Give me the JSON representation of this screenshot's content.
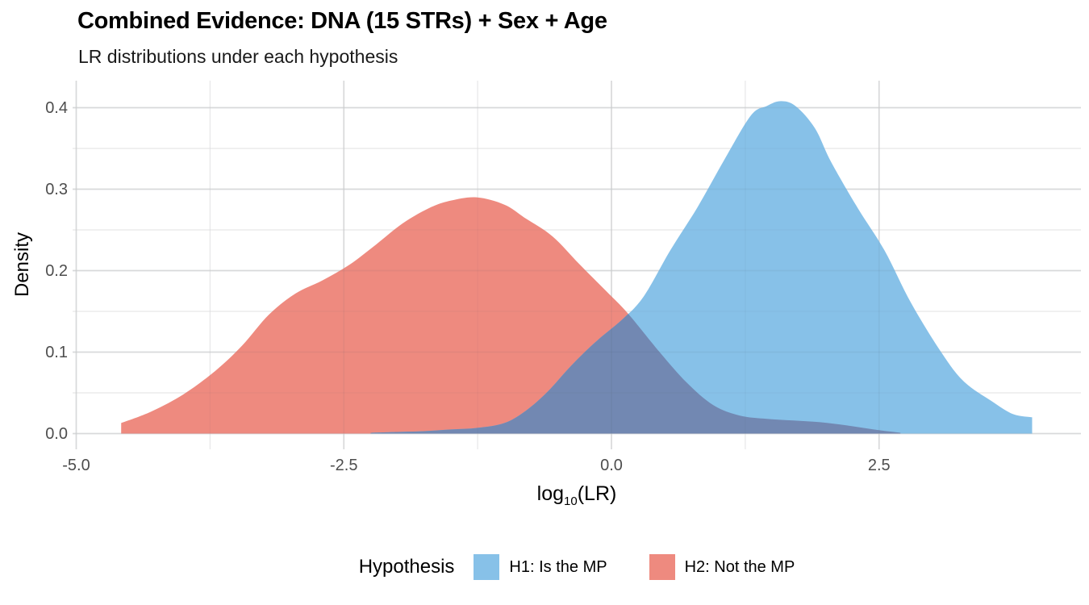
{
  "chart": {
    "title": "Combined Evidence: DNA (15 STRs) + Sex + Age",
    "subtitle": "LR distributions under each hypothesis",
    "y_axis": {
      "label": "Density",
      "tick_values": [
        0.0,
        0.1,
        0.2,
        0.3,
        0.4
      ],
      "tick_labels": [
        "0.0",
        "0.1",
        "0.2",
        "0.3",
        "0.4"
      ]
    },
    "x_axis": {
      "label_prefix": "log",
      "label_sub": "10",
      "label_suffix": "(LR)",
      "tick_values": [
        -5.0,
        -2.5,
        0.0,
        2.5
      ],
      "tick_labels": [
        "-5.0",
        "-2.5",
        "0.0",
        "2.5"
      ]
    },
    "legend": {
      "title": "Hypothesis",
      "items": [
        {
          "label": "H1: Is the MP",
          "color": "#87C1E8"
        },
        {
          "label": "H2: Not the MP",
          "color": "#EE8A7F"
        }
      ]
    }
  },
  "chart_data": {
    "type": "area",
    "title": "Combined Evidence: DNA (15 STRs) + Sex + Age",
    "subtitle": "LR distributions under each hypothesis",
    "xlabel": "log10(LR)",
    "ylabel": "Density",
    "xlim": [
      -5.03,
      4.38
    ],
    "ylim": [
      0,
      0.433
    ],
    "x_ticks": [
      -5.0,
      -2.5,
      0.0,
      2.5
    ],
    "y_ticks": [
      0.0,
      0.1,
      0.2,
      0.3,
      0.4
    ],
    "grid": true,
    "legend_position": "bottom",
    "overlap_color": "#7288B2",
    "grid_major_color": "#E4E4E4",
    "grid_minor_color": "#F0F0F0",
    "series": [
      {
        "name": "H2: Not the MP",
        "hypothesis": "H2",
        "color": "#EE8A7F",
        "points": [
          [
            -4.58,
            0.013
          ],
          [
            -4.3,
            0.027
          ],
          [
            -4.0,
            0.048
          ],
          [
            -3.7,
            0.077
          ],
          [
            -3.45,
            0.108
          ],
          [
            -3.2,
            0.146
          ],
          [
            -2.95,
            0.172
          ],
          [
            -2.7,
            0.188
          ],
          [
            -2.45,
            0.207
          ],
          [
            -2.2,
            0.232
          ],
          [
            -1.95,
            0.258
          ],
          [
            -1.7,
            0.277
          ],
          [
            -1.5,
            0.286
          ],
          [
            -1.26,
            0.29
          ],
          [
            -1.0,
            0.281
          ],
          [
            -0.8,
            0.264
          ],
          [
            -0.55,
            0.242
          ],
          [
            -0.3,
            0.208
          ],
          [
            -0.05,
            0.175
          ],
          [
            0.15,
            0.148
          ],
          [
            0.45,
            0.1
          ],
          [
            0.7,
            0.063
          ],
          [
            0.95,
            0.035
          ],
          [
            1.2,
            0.022
          ],
          [
            1.45,
            0.018
          ],
          [
            1.7,
            0.016
          ],
          [
            1.95,
            0.014
          ],
          [
            2.2,
            0.01
          ],
          [
            2.45,
            0.005
          ],
          [
            2.7,
            0.001
          ]
        ]
      },
      {
        "name": "H1: Is the MP",
        "hypothesis": "H1",
        "color": "#87C1E8",
        "points": [
          [
            -2.25,
            0.001
          ],
          [
            -2.0,
            0.002
          ],
          [
            -1.75,
            0.003
          ],
          [
            -1.5,
            0.005
          ],
          [
            -1.25,
            0.007
          ],
          [
            -1.0,
            0.013
          ],
          [
            -0.8,
            0.028
          ],
          [
            -0.6,
            0.051
          ],
          [
            -0.4,
            0.08
          ],
          [
            -0.25,
            0.1
          ],
          [
            -0.1,
            0.118
          ],
          [
            0.1,
            0.14
          ],
          [
            0.3,
            0.168
          ],
          [
            0.55,
            0.225
          ],
          [
            0.8,
            0.277
          ],
          [
            1.05,
            0.335
          ],
          [
            1.3,
            0.39
          ],
          [
            1.45,
            0.402
          ],
          [
            1.58,
            0.408
          ],
          [
            1.72,
            0.402
          ],
          [
            1.9,
            0.375
          ],
          [
            2.05,
            0.334
          ],
          [
            2.3,
            0.277
          ],
          [
            2.55,
            0.225
          ],
          [
            2.8,
            0.16
          ],
          [
            3.1,
            0.096
          ],
          [
            3.3,
            0.063
          ],
          [
            3.55,
            0.04
          ],
          [
            3.75,
            0.024
          ],
          [
            3.93,
            0.02
          ]
        ]
      }
    ]
  }
}
